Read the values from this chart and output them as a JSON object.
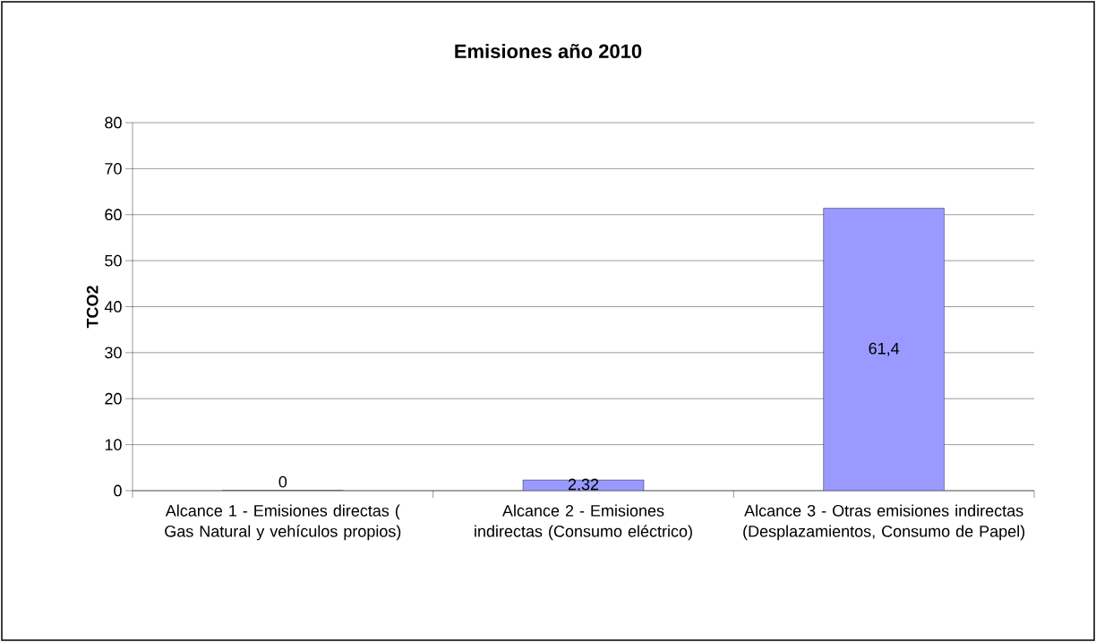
{
  "chart_data": {
    "type": "bar",
    "title": "Emisiones año 2010",
    "ylabel": "TCO2",
    "categories": [
      "Alcance 1 - Emisiones directas ( Gas Natural y vehículos propios)",
      "Alcance 2 - Emisiones indirectas (Consumo eléctrico)",
      "Alcance 3 - Otras emisiones indirectas (Desplazamientos, Consumo de Papel)"
    ],
    "values": [
      0,
      2.32,
      61.4
    ],
    "value_labels": [
      "0",
      "2,32",
      "61,4"
    ],
    "color": "#9999ff",
    "ylim": [
      0,
      80
    ],
    "yticks": [
      0,
      10,
      20,
      30,
      40,
      50,
      60,
      70,
      80
    ],
    "grid": "y"
  }
}
